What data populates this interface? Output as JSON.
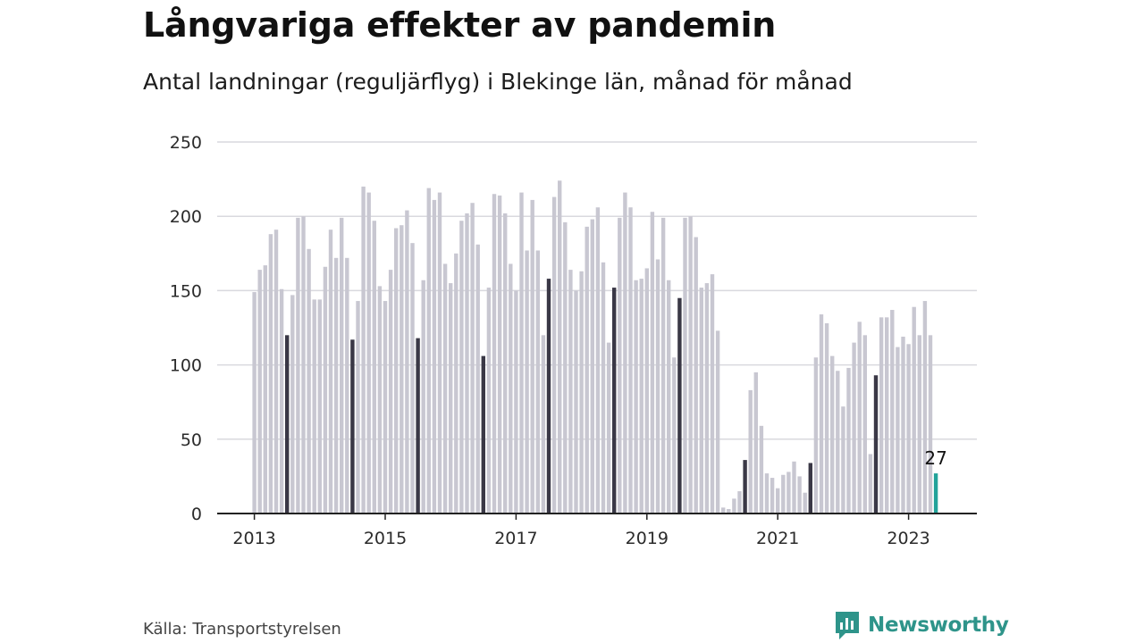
{
  "title": "Långvariga effekter av pandemin",
  "subtitle": "Antal landningar (reguljärflyg) i Blekinge län, månad för månad",
  "source": "Källa: Transportstyrelsen",
  "brand": "Newsworthy",
  "colors": {
    "bar": "#c8c7d1",
    "july": "#3a3846",
    "latest": "#22a39a",
    "grid": "#d9d9de",
    "axis": "#222222",
    "brand": "#2e948a"
  },
  "chart_data": {
    "type": "bar",
    "title": "",
    "xlabel": "",
    "ylabel": "",
    "ylim": [
      0,
      250
    ],
    "yticks": [
      0,
      50,
      100,
      150,
      200,
      250
    ],
    "xticks": [
      "2013",
      "2015",
      "2017",
      "2019",
      "2021",
      "2023"
    ],
    "start": "2013-01",
    "annotation": "27",
    "series": [
      {
        "values": [
          149,
          164,
          167,
          188,
          191,
          151,
          120,
          147,
          199,
          200,
          178,
          144,
          144,
          166,
          191,
          172,
          199,
          172,
          117,
          143,
          220,
          216,
          197,
          153,
          143,
          164,
          192,
          194,
          204,
          182,
          118,
          157,
          219,
          211,
          216,
          168,
          155,
          175,
          197,
          202,
          209,
          181,
          106,
          152,
          215,
          214,
          202,
          168,
          150,
          216,
          177,
          211,
          177,
          120,
          158,
          213,
          224,
          196,
          164,
          150,
          163,
          193,
          198,
          206,
          169,
          115,
          152,
          199,
          216,
          206,
          157,
          158,
          165,
          203,
          171,
          199,
          157,
          105,
          145,
          199,
          200,
          186,
          152,
          155,
          161,
          123,
          4,
          3,
          10,
          15,
          36,
          83,
          95,
          59,
          27,
          24,
          17,
          26,
          28,
          35,
          25,
          14,
          34,
          105,
          134,
          128,
          106,
          96,
          72,
          98,
          115,
          129,
          120,
          40,
          93,
          132,
          132,
          137,
          112,
          119,
          114,
          139,
          120,
          143,
          120,
          27
        ]
      }
    ]
  }
}
